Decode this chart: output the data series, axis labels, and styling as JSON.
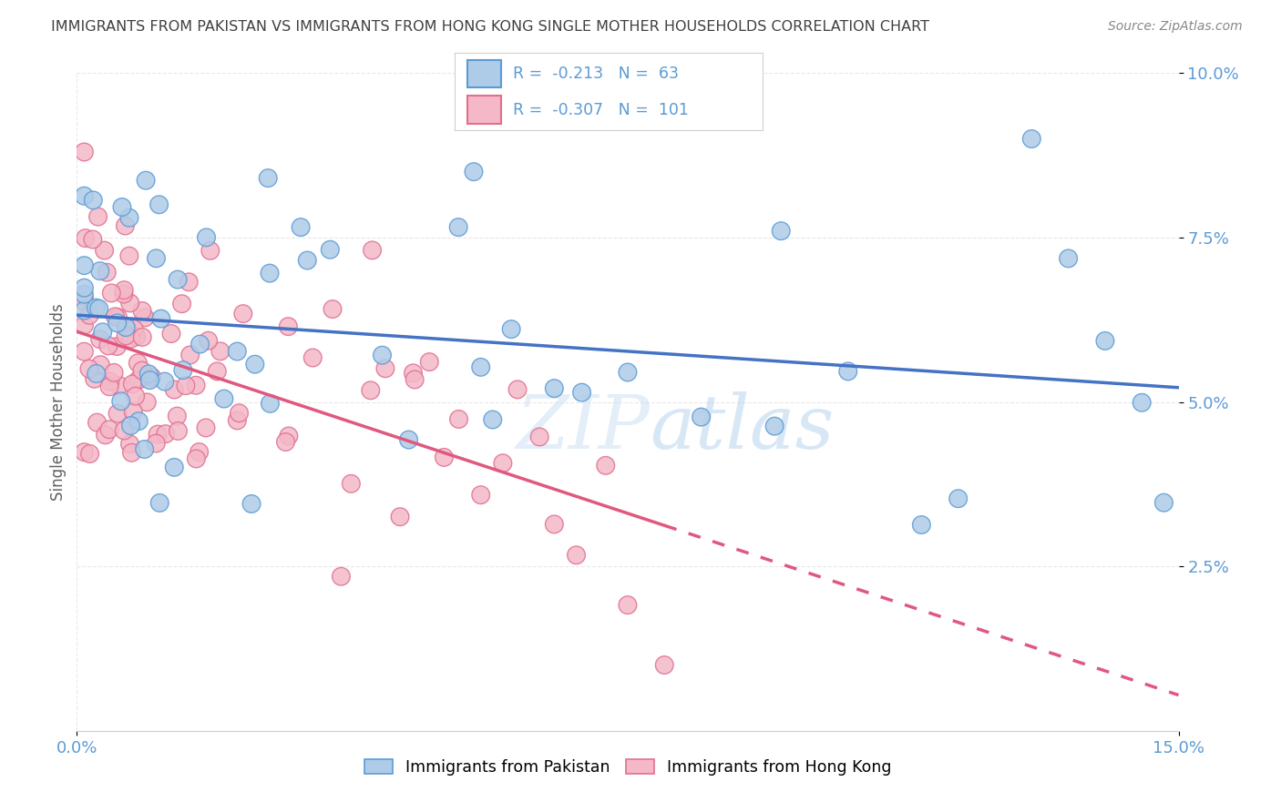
{
  "title": "IMMIGRANTS FROM PAKISTAN VS IMMIGRANTS FROM HONG KONG SINGLE MOTHER HOUSEHOLDS CORRELATION CHART",
  "source": "Source: ZipAtlas.com",
  "ylabel": "Single Mother Households",
  "xlim": [
    0.0,
    0.15
  ],
  "ylim": [
    0.0,
    0.1
  ],
  "pakistan_R": -0.213,
  "pakistan_N": 63,
  "hongkong_R": -0.307,
  "hongkong_N": 101,
  "pakistan_color": "#aecce8",
  "pakistan_edge_color": "#5b9bd5",
  "pakistan_line_color": "#4472c4",
  "hongkong_color": "#f4b8c8",
  "hongkong_edge_color": "#e07090",
  "hongkong_line_color": "#e05880",
  "watermark_color": "#c8dff0",
  "watermark_text_color": "#b0cce8",
  "background_color": "#ffffff",
  "grid_color": "#e8e8e8",
  "title_color": "#404040",
  "source_color": "#888888",
  "tick_color": "#5b9bd5",
  "ylabel_color": "#606060",
  "dot_size": 200,
  "line_width": 2.0
}
